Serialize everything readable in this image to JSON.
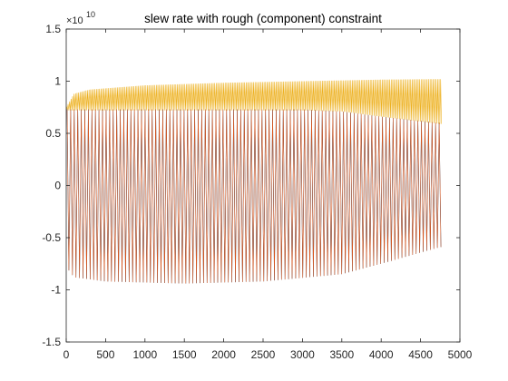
{
  "chart_data": {
    "type": "line",
    "title": "slew rate with rough (component) constraint",
    "xlabel": "",
    "ylabel": "",
    "xlim": [
      0,
      5000
    ],
    "ylim": [
      -15000000000,
      15000000000
    ],
    "y_multiplier": {
      "base": "×10",
      "exponent": "10"
    },
    "x_ticks": [
      {
        "value": 0,
        "label": "0"
      },
      {
        "value": 500,
        "label": "500"
      },
      {
        "value": 1000,
        "label": "1000"
      },
      {
        "value": 1500,
        "label": "1500"
      },
      {
        "value": 2000,
        "label": "2000"
      },
      {
        "value": 2500,
        "label": "2500"
      },
      {
        "value": 3000,
        "label": "3000"
      },
      {
        "value": 3500,
        "label": "3500"
      },
      {
        "value": 4000,
        "label": "4000"
      },
      {
        "value": 4500,
        "label": "4500"
      },
      {
        "value": 5000,
        "label": "5000"
      }
    ],
    "y_ticks": [
      {
        "value": -15000000000,
        "label": "-1.5"
      },
      {
        "value": -10000000000,
        "label": "-1"
      },
      {
        "value": -5000000000,
        "label": "-0.5"
      },
      {
        "value": 0,
        "label": "0"
      },
      {
        "value": 5000000000,
        "label": "0.5"
      },
      {
        "value": 10000000000,
        "label": "1"
      },
      {
        "value": 15000000000,
        "label": "1.5"
      }
    ],
    "grid": false,
    "legend": "none",
    "series": [
      {
        "color": "#EDB120",
        "style": "oscillating",
        "x_end": 4750,
        "upper_envelope": [
          [
            0,
            7500000000
          ],
          [
            100,
            8800000000
          ],
          [
            300,
            9200000000
          ],
          [
            1000,
            9600000000
          ],
          [
            2000,
            9850000000
          ],
          [
            3000,
            10000000000
          ],
          [
            4000,
            10150000000
          ],
          [
            4750,
            10200000000
          ]
        ],
        "lower_envelope": [
          [
            0,
            7200000000
          ],
          [
            3000,
            7200000000
          ],
          [
            3500,
            7100000000
          ],
          [
            4000,
            6600000000
          ],
          [
            4750,
            5900000000
          ]
        ],
        "period": 19
      },
      {
        "color": "#0072BD",
        "style": "oscillating",
        "x_end": 4750,
        "upper_envelope": [
          [
            0,
            7300000000
          ],
          [
            3000,
            7300000000
          ],
          [
            3500,
            7100000000
          ],
          [
            4000,
            6600000000
          ],
          [
            4750,
            6000000000
          ]
        ],
        "lower_envelope": [
          [
            0,
            -7800000000
          ],
          [
            100,
            -8800000000
          ],
          [
            500,
            -9200000000
          ],
          [
            1500,
            -9400000000
          ],
          [
            2500,
            -9200000000
          ],
          [
            3500,
            -8500000000
          ],
          [
            4000,
            -7500000000
          ],
          [
            4750,
            -5900000000
          ]
        ],
        "period": 45
      },
      {
        "color": "#D95319",
        "style": "oscillating",
        "x_end": 4750,
        "upper_envelope": [
          [
            0,
            7300000000
          ],
          [
            3000,
            7300000000
          ],
          [
            3500,
            7100000000
          ],
          [
            4000,
            6600000000
          ],
          [
            4750,
            6000000000
          ]
        ],
        "lower_envelope": [
          [
            0,
            -7800000000
          ],
          [
            100,
            -8800000000
          ],
          [
            500,
            -9200000000
          ],
          [
            1500,
            -9400000000
          ],
          [
            2500,
            -9200000000
          ],
          [
            3500,
            -8500000000
          ],
          [
            4000,
            -7500000000
          ],
          [
            4750,
            -5900000000
          ]
        ],
        "period": 45
      }
    ]
  }
}
